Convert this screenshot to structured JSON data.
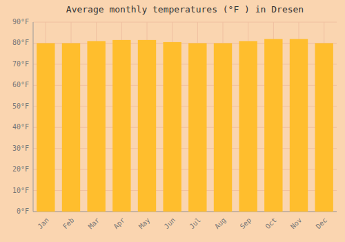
{
  "chart_data": {
    "type": "bar",
    "title": "Average monthly temperatures (°F ) in Dresen",
    "categories": [
      "Jan",
      "Feb",
      "Mar",
      "Apr",
      "May",
      "Jun",
      "Jul",
      "Aug",
      "Sep",
      "Oct",
      "Nov",
      "Dec"
    ],
    "values": [
      80,
      80,
      81,
      81.5,
      81.5,
      80.5,
      80,
      80,
      81,
      82,
      82,
      80
    ],
    "color": "#FFBE2D",
    "ylim": [
      0,
      90
    ],
    "yticks": [
      {
        "value": 0,
        "label": "0°F"
      },
      {
        "value": 10,
        "label": "10°F"
      },
      {
        "value": 20,
        "label": "20°F"
      },
      {
        "value": 30,
        "label": "30°F"
      },
      {
        "value": 40,
        "label": "40°F"
      },
      {
        "value": 50,
        "label": "50°F"
      },
      {
        "value": 60,
        "label": "60°F"
      },
      {
        "value": 70,
        "label": "70°F"
      },
      {
        "value": 80,
        "label": "80°F"
      },
      {
        "value": 90,
        "label": "90°F"
      }
    ],
    "grid": true
  }
}
